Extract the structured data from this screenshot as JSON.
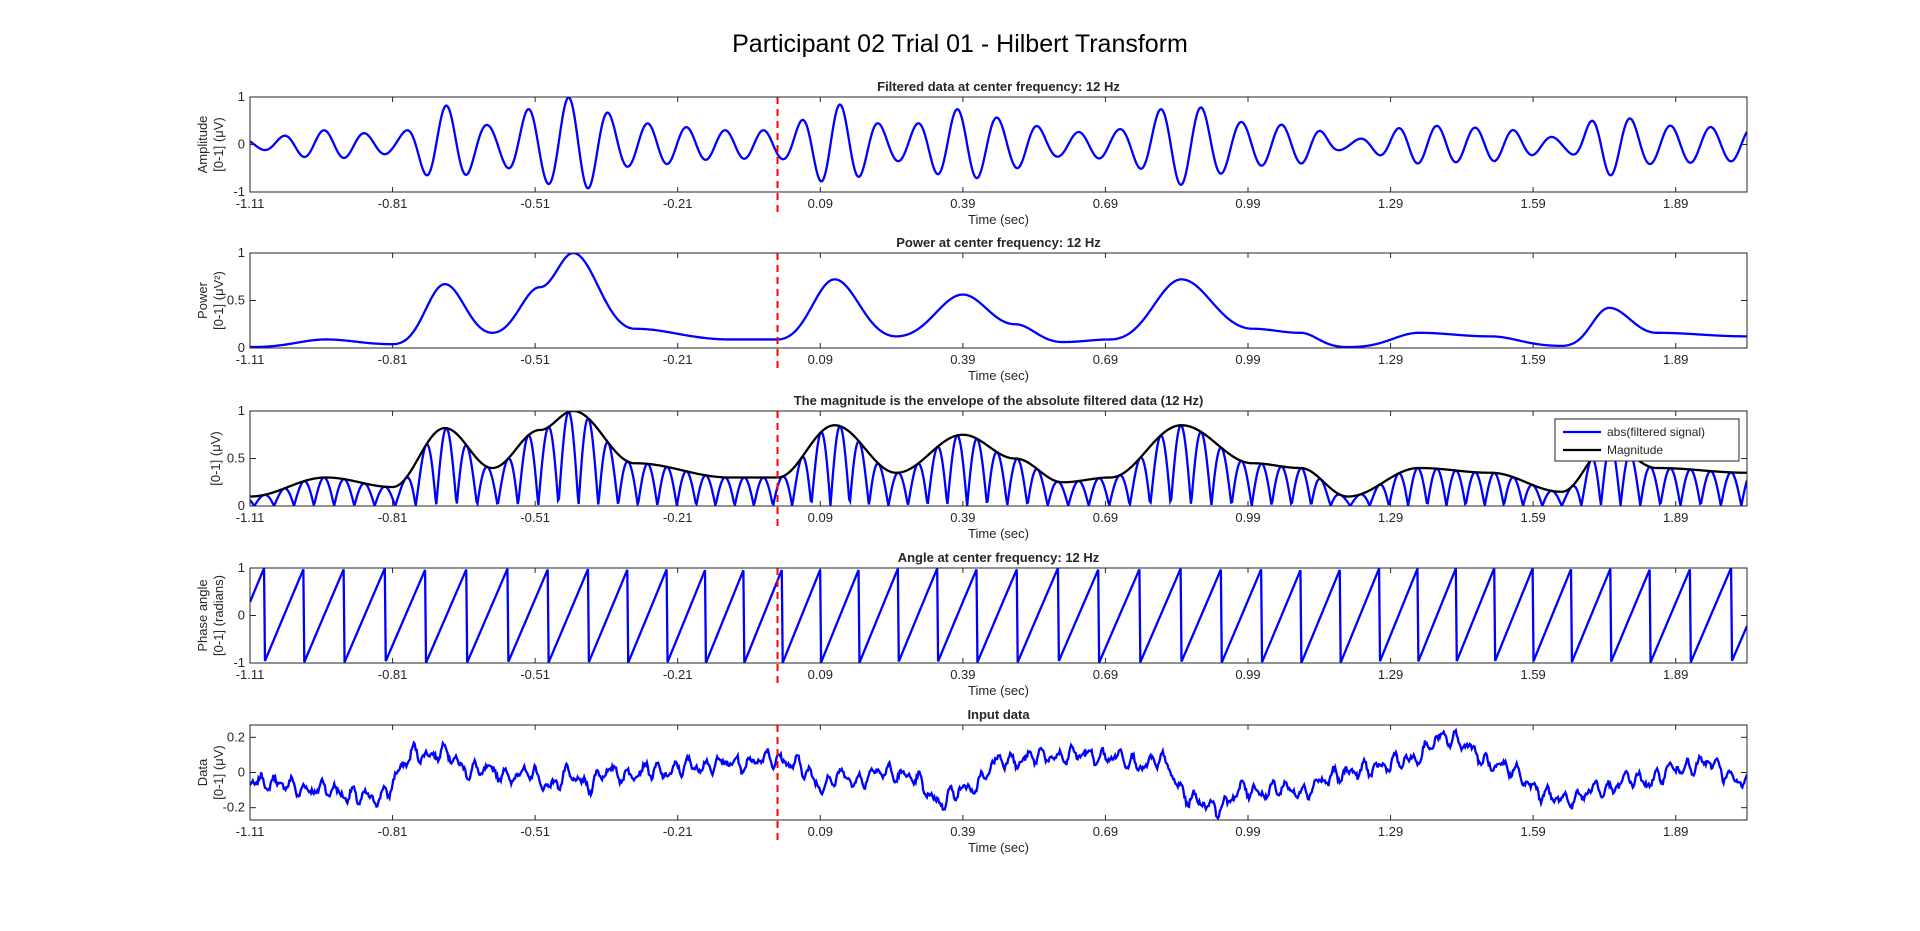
{
  "figure": {
    "title": "Participant 02 Trial 01 - Hilbert Transform",
    "xlabel": "Time (sec)",
    "xticks": [
      "-1.11",
      "-0.81",
      "-0.51",
      "-0.21",
      "0.09",
      "0.39",
      "0.69",
      "0.99",
      "1.29",
      "1.59",
      "1.89"
    ],
    "event_marker_time": 0,
    "colors": {
      "signal": "#0000ff",
      "magnitude": "#000000",
      "marker": "#ff0000"
    }
  },
  "chart_data": [
    {
      "type": "line",
      "title": "Filtered data at center frequency: 12 Hz",
      "ylabel_line1": "Amplitude",
      "ylabel_line2": "[0-1] (μV)",
      "xlim": [
        -1.11,
        2.04
      ],
      "ylim": [
        -1,
        1
      ],
      "yticks": [
        "-1",
        "0",
        "1"
      ],
      "ytick_values": [
        -1,
        0,
        1
      ],
      "frequency_hz": 12,
      "envelope_knots": {
        "t": [
          -1.11,
          -0.95,
          -0.81,
          -0.7,
          -0.6,
          -0.5,
          -0.43,
          -0.3,
          -0.1,
          0.0,
          0.12,
          0.25,
          0.39,
          0.5,
          0.6,
          0.7,
          0.85,
          1.0,
          1.1,
          1.2,
          1.35,
          1.5,
          1.65,
          1.75,
          1.85,
          2.04
        ],
        "amp": [
          0.1,
          0.3,
          0.2,
          0.82,
          0.4,
          0.8,
          1.0,
          0.45,
          0.3,
          0.3,
          0.85,
          0.35,
          0.75,
          0.5,
          0.25,
          0.3,
          0.85,
          0.45,
          0.4,
          0.1,
          0.4,
          0.35,
          0.15,
          0.65,
          0.4,
          0.35
        ]
      },
      "series": [
        {
          "name": "",
          "values": "filtered"
        }
      ]
    },
    {
      "type": "line",
      "title": "Power at center frequency: 12 Hz",
      "ylabel_line1": "Power",
      "ylabel_line2": "[0-1] (μV²)",
      "xlim": [
        -1.11,
        2.04
      ],
      "ylim": [
        0,
        1
      ],
      "yticks": [
        "0",
        "0.5",
        "1"
      ],
      "ytick_values": [
        0,
        0.5,
        1
      ],
      "series": [
        {
          "name": "",
          "values": "power"
        }
      ]
    },
    {
      "type": "line",
      "title": "The magnitude is the envelope of the absolute filtered data (12 Hz)",
      "ylabel_line1": "[0-1] (μV)",
      "ylabel_line2": "",
      "xlim": [
        -1.11,
        2.04
      ],
      "ylim": [
        0,
        1
      ],
      "yticks": [
        "0",
        "0.5",
        "1"
      ],
      "ytick_values": [
        0,
        0.5,
        1
      ],
      "legend": {
        "position": "top-right",
        "entries": [
          "abs(filtered signal)",
          "Magnitude"
        ]
      },
      "series": [
        {
          "name": "abs(filtered signal)",
          "values": "abs"
        },
        {
          "name": "Magnitude",
          "values": "envelope"
        }
      ]
    },
    {
      "type": "line",
      "title": "Angle at center frequency: 12 Hz",
      "ylabel_line1": "Phase angle",
      "ylabel_line2": "[0-1] (radians)",
      "xlim": [
        -1.11,
        2.04
      ],
      "ylim": [
        -1,
        1
      ],
      "yticks": [
        "-1",
        "0",
        "1"
      ],
      "ytick_values": [
        -1,
        0,
        1
      ],
      "series": [
        {
          "name": "",
          "values": "phase"
        }
      ]
    },
    {
      "type": "line",
      "title": "Input data",
      "ylabel_line1": "Data",
      "ylabel_line2": "[0-1] (μV)",
      "xlim": [
        -1.11,
        2.04
      ],
      "ylim": [
        -0.27,
        0.27
      ],
      "yticks": [
        "0.2",
        "0",
        "-0.2"
      ],
      "ytick_values": [
        0.2,
        0,
        -0.2
      ],
      "baseline_knots": {
        "t": [
          -1.11,
          -0.95,
          -0.85,
          -0.75,
          -0.6,
          -0.45,
          -0.3,
          -0.1,
          0.0,
          0.1,
          0.25,
          0.35,
          0.5,
          0.65,
          0.8,
          0.9,
          1.0,
          1.1,
          1.2,
          1.3,
          1.42,
          1.5,
          1.65,
          1.8,
          1.95,
          2.04
        ],
        "val": [
          -0.05,
          -0.1,
          -0.15,
          0.12,
          0.0,
          -0.05,
          0.0,
          0.05,
          0.08,
          -0.05,
          0.0,
          -0.15,
          0.08,
          0.1,
          0.05,
          -0.2,
          -0.1,
          -0.1,
          0.0,
          0.05,
          0.2,
          0.05,
          -0.15,
          -0.05,
          0.05,
          -0.05
        ]
      },
      "series": [
        {
          "name": "",
          "values": "input"
        }
      ]
    }
  ]
}
